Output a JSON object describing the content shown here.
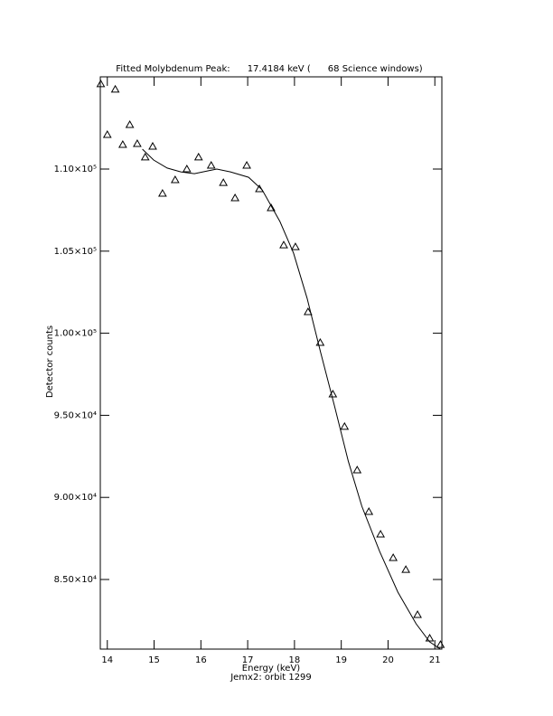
{
  "chart_data": {
    "type": "scatter",
    "title": "Fitted Molybdenum Peak:      17.4184 keV (      68 Science windows)",
    "x_label": "Energy (keV)",
    "subtitle": "Jemx2: orbit 1299",
    "y_label": "Detector counts",
    "xlim": [
      13.85,
      21.15
    ],
    "ylim": [
      80760,
      115617
    ],
    "xticks": [
      14,
      15,
      16,
      17,
      18,
      19,
      20,
      21
    ],
    "yticks": [
      {
        "value": 85000,
        "label": "8.50×10⁴"
      },
      {
        "value": 90000,
        "label": "9.00×10⁴"
      },
      {
        "value": 95000,
        "label": "9.50×10⁴"
      },
      {
        "value": 100000,
        "label": "1.00×10⁵"
      },
      {
        "value": 105000,
        "label": "1.05×10⁵"
      },
      {
        "value": 110000,
        "label": "1.10×10⁵"
      }
    ],
    "color": "#000000",
    "series": [
      {
        "marker": "triangle",
        "x": [
          13.86,
          14.0,
          14.17,
          14.33,
          14.48,
          14.64,
          14.81,
          14.97,
          15.18,
          15.45,
          15.7,
          15.95,
          16.22,
          16.48,
          16.73,
          16.98,
          17.25,
          17.5,
          17.77,
          18.02,
          18.29,
          18.55,
          18.82,
          19.07,
          19.34,
          19.59,
          19.84,
          20.11,
          20.38,
          20.63,
          20.89,
          21.12
        ],
        "values": [
          115180,
          112090,
          114850,
          111490,
          112700,
          111540,
          110720,
          111380,
          108510,
          109340,
          110000,
          110720,
          110220,
          109170,
          108240,
          110220,
          108790,
          107630,
          105370,
          105260,
          101300,
          99430,
          96290,
          94310,
          91660,
          89130,
          87750,
          86320,
          85600,
          82850,
          81420,
          81030
        ]
      },
      {
        "marker": "line",
        "x": [
          14.75,
          14.99,
          15.28,
          15.57,
          15.86,
          16.15,
          16.34,
          16.63,
          17.02,
          17.31,
          17.69,
          17.98,
          18.27,
          18.56,
          18.86,
          19.15,
          19.44,
          19.82,
          20.21,
          20.6,
          20.89,
          21.12
        ],
        "values": [
          111210,
          110550,
          110060,
          109830,
          109720,
          109890,
          110000,
          109830,
          109500,
          108730,
          106800,
          104880,
          102130,
          98820,
          95520,
          92210,
          89460,
          86710,
          84230,
          82300,
          81200,
          80760
        ]
      }
    ]
  }
}
